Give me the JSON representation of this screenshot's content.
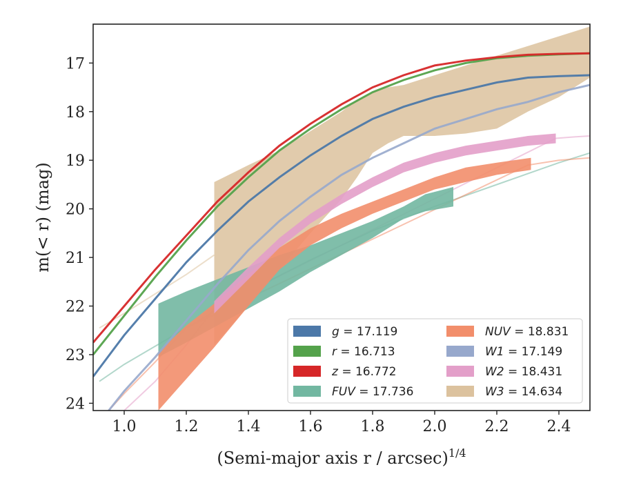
{
  "chart_data": {
    "type": "line",
    "xlabel": "(Semi-major axis r / arcsec)",
    "xlabel_exponent": "1/4",
    "ylabel": "m(< r) (mag)",
    "xlim": [
      0.9,
      2.5
    ],
    "ylim": [
      24.15,
      16.2
    ],
    "y_inverted": true,
    "x_ticks": [
      1.0,
      1.2,
      1.4,
      1.6,
      1.8,
      2.0,
      2.2,
      2.4
    ],
    "x_tick_labels": [
      "1.0",
      "1.2",
      "1.4",
      "1.6",
      "1.8",
      "2.0",
      "2.2",
      "2.4"
    ],
    "y_ticks": [
      17,
      18,
      19,
      20,
      21,
      22,
      23,
      24
    ],
    "y_tick_labels": [
      "17",
      "18",
      "19",
      "20",
      "21",
      "22",
      "23",
      "24"
    ],
    "grid": false,
    "legend_position": "lower-right",
    "legend_columns": 2,
    "series": [
      {
        "name": "g",
        "legend_label": "g = 17.119",
        "color": "#4c78a8",
        "kind": "line",
        "x": [
          0.9,
          1.0,
          1.1,
          1.2,
          1.3,
          1.4,
          1.5,
          1.6,
          1.7,
          1.8,
          1.9,
          2.0,
          2.1,
          2.2,
          2.3,
          2.4,
          2.5
        ],
        "y": [
          23.45,
          22.6,
          21.85,
          21.1,
          20.45,
          19.85,
          19.35,
          18.9,
          18.5,
          18.15,
          17.9,
          17.7,
          17.55,
          17.4,
          17.3,
          17.27,
          17.25
        ]
      },
      {
        "name": "r",
        "legend_label": "r = 16.713",
        "color": "#54a24b",
        "kind": "line",
        "x": [
          0.9,
          1.0,
          1.1,
          1.2,
          1.3,
          1.4,
          1.5,
          1.6,
          1.7,
          1.8,
          1.9,
          2.0,
          2.1,
          2.2,
          2.3,
          2.4,
          2.5
        ],
        "y": [
          23.0,
          22.2,
          21.4,
          20.65,
          19.95,
          19.35,
          18.8,
          18.35,
          17.95,
          17.6,
          17.35,
          17.15,
          17.0,
          16.9,
          16.85,
          16.82,
          16.8
        ]
      },
      {
        "name": "z",
        "legend_label": "z = 16.772",
        "color": "#d62728",
        "kind": "line",
        "x": [
          0.9,
          1.0,
          1.1,
          1.2,
          1.3,
          1.4,
          1.5,
          1.6,
          1.7,
          1.8,
          1.9,
          2.0,
          2.1,
          2.2,
          2.3,
          2.4,
          2.5
        ],
        "y": [
          22.75,
          22.0,
          21.25,
          20.55,
          19.85,
          19.25,
          18.7,
          18.25,
          17.85,
          17.5,
          17.25,
          17.05,
          16.95,
          16.88,
          16.83,
          16.81,
          16.8
        ]
      },
      {
        "name": "FUV",
        "legend_label": "FUV = 17.736",
        "color": "#72b7a1",
        "kind": "band",
        "x": [
          1.11,
          1.2,
          1.3,
          1.4,
          1.5,
          1.6,
          1.7,
          1.8,
          1.9,
          1.97,
          2.06
        ],
        "y_low": [
          21.95,
          21.7,
          21.45,
          21.2,
          20.95,
          20.75,
          20.5,
          20.25,
          19.95,
          19.7,
          19.55
        ],
        "y_high": [
          23.05,
          22.75,
          22.4,
          22.05,
          21.7,
          21.3,
          20.95,
          20.6,
          20.2,
          20.05,
          19.95
        ],
        "extrapolation": {
          "x": [
            0.92,
            1.0,
            1.2,
            1.4,
            1.6,
            1.8,
            2.0,
            2.2,
            2.4,
            2.5
          ],
          "y": [
            23.55,
            23.2,
            22.45,
            21.7,
            21.05,
            20.45,
            19.95,
            19.5,
            19.05,
            18.85
          ]
        }
      },
      {
        "name": "NUV",
        "legend_label": "NUV = 18.831",
        "color": "#f28e6b",
        "kind": "band",
        "x": [
          1.11,
          1.2,
          1.29,
          1.4,
          1.5,
          1.6,
          1.7,
          1.8,
          1.9,
          2.0,
          2.1,
          2.2,
          2.31
        ],
        "y_low": [
          22.95,
          22.4,
          21.95,
          21.35,
          20.8,
          20.4,
          20.1,
          19.85,
          19.6,
          19.35,
          19.15,
          19.05,
          18.95
        ],
        "y_high": [
          24.15,
          23.5,
          22.85,
          22.0,
          21.25,
          20.75,
          20.4,
          20.1,
          19.85,
          19.6,
          19.45,
          19.3,
          19.2
        ],
        "extrapolation": {
          "x": [
            0.95,
            1.0,
            1.1,
            1.2,
            2.3,
            2.4,
            2.5
          ],
          "y": [
            24.15,
            23.8,
            23.15,
            22.45,
            19.1,
            19.0,
            18.95
          ]
        }
      },
      {
        "name": "W1",
        "legend_label": "W1 = 17.149",
        "color": "#97a8cc",
        "kind": "line",
        "x": [
          0.95,
          1.0,
          1.1,
          1.2,
          1.3,
          1.4,
          1.5,
          1.6,
          1.7,
          1.8,
          1.9,
          2.0,
          2.1,
          2.2,
          2.3,
          2.4,
          2.5
        ],
        "y": [
          24.15,
          23.75,
          23.05,
          22.3,
          21.55,
          20.85,
          20.25,
          19.75,
          19.3,
          18.95,
          18.65,
          18.35,
          18.15,
          17.95,
          17.8,
          17.6,
          17.45
        ]
      },
      {
        "name": "W2",
        "legend_label": "W2 = 18.431",
        "color": "#e39fc9",
        "kind": "band",
        "x": [
          1.29,
          1.4,
          1.5,
          1.6,
          1.7,
          1.8,
          1.9,
          2.0,
          2.1,
          2.2,
          2.3,
          2.39
        ],
        "y_low": [
          21.9,
          21.2,
          20.6,
          20.1,
          19.7,
          19.35,
          19.05,
          18.85,
          18.7,
          18.6,
          18.5,
          18.45
        ],
        "y_high": [
          22.15,
          21.45,
          20.8,
          20.3,
          19.9,
          19.55,
          19.25,
          19.05,
          18.9,
          18.8,
          18.7,
          18.65
        ],
        "extrapolation": {
          "x": [
            1.0,
            1.1,
            1.2,
            1.29,
            2.39,
            2.45,
            2.5
          ],
          "y": [
            24.15,
            23.55,
            22.8,
            22.05,
            18.55,
            18.52,
            18.5
          ]
        }
      },
      {
        "name": "W3",
        "legend_label": "W3 = 14.634",
        "color": "#dcc29e",
        "kind": "band",
        "x": [
          1.29,
          1.4,
          1.5,
          1.6,
          1.7,
          1.75,
          1.8,
          1.85,
          1.9,
          1.95,
          2.0,
          2.1,
          2.2,
          2.3,
          2.4,
          2.5
        ],
        "y_low": [
          19.45,
          19.1,
          18.8,
          18.4,
          18.0,
          17.75,
          17.6,
          17.5,
          17.45,
          17.35,
          17.25,
          17.05,
          16.85,
          16.65,
          16.45,
          16.25
        ],
        "y_high": [
          22.8,
          22.0,
          21.25,
          20.5,
          19.8,
          19.35,
          18.85,
          18.65,
          18.5,
          18.5,
          18.5,
          18.45,
          18.35,
          18.0,
          17.7,
          17.3
        ],
        "extrapolation": {
          "x": [
            0.92,
            1.0,
            1.1,
            1.2,
            1.29
          ],
          "y": [
            22.45,
            22.15,
            21.75,
            21.35,
            20.95
          ]
        }
      }
    ],
    "legend_entries": [
      {
        "series": "g",
        "var": "g",
        "value": "= 17.119",
        "color": "#4c78a8"
      },
      {
        "series": "r",
        "var": "r",
        "value": "= 16.713",
        "color": "#54a24b"
      },
      {
        "series": "z",
        "var": "z",
        "value": "= 16.772",
        "color": "#d62728"
      },
      {
        "series": "FUV",
        "var": "FUV",
        "value": "= 17.736",
        "color": "#72b7a1"
      },
      {
        "series": "NUV",
        "var": "NUV",
        "value": "= 18.831",
        "color": "#f28e6b"
      },
      {
        "series": "W1",
        "var": "W1",
        "value": "= 17.149",
        "color": "#97a8cc"
      },
      {
        "series": "W2",
        "var": "W2",
        "value": "= 18.431",
        "color": "#e39fc9"
      },
      {
        "series": "W3",
        "var": "W3",
        "value": "= 14.634",
        "color": "#dcc29e"
      }
    ]
  }
}
